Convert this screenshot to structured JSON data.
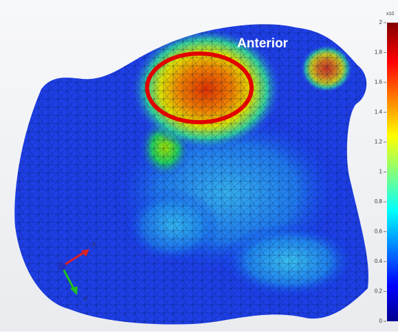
{
  "annotation": "Anterior",
  "colorbar": {
    "exponent_label": "x10",
    "range": [
      0,
      2
    ],
    "ticks": [
      0,
      0.2,
      0.4,
      0.6,
      0.8,
      1,
      1.2,
      1.4,
      1.6,
      1.8,
      2
    ]
  },
  "triad": {
    "x_label": "X",
    "y_label": "Y"
  }
}
